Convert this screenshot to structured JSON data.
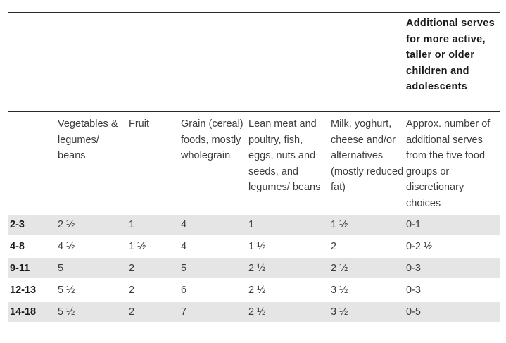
{
  "extra_header": "Additional serves for more active, taller or older children and adolescents",
  "columns": [
    "",
    "Vegetables & legumes/ beans",
    "Fruit",
    "Grain (cereal) foods, mostly wholegrain",
    "Lean meat and poultry, fish, eggs, nuts and seeds, and legumes/ beans",
    "Milk, yoghurt, cheese and/or alternatives (mostly reduced fat)",
    "Approx. number of additional serves from the five food groups or discretionary choices"
  ],
  "rows": [
    [
      "2-3",
      "2 ½",
      "1",
      "4",
      "1",
      "1 ½",
      "0-1"
    ],
    [
      "4-8",
      "4 ½",
      "1 ½",
      "4",
      "1 ½",
      "2",
      "0-2 ½"
    ],
    [
      "9-11",
      "5",
      "2",
      "5",
      "2 ½",
      "2 ½",
      "0-3"
    ],
    [
      "12-13",
      "5 ½",
      "2",
      "6",
      "2 ½",
      "3 ½",
      "0-3"
    ],
    [
      "14-18",
      "5 ½",
      "2",
      "7",
      "2 ½",
      "3 ½",
      "0-5"
    ]
  ],
  "colors": {
    "row_shade": "#e5e5e5",
    "rule": "#2b2b2b"
  }
}
